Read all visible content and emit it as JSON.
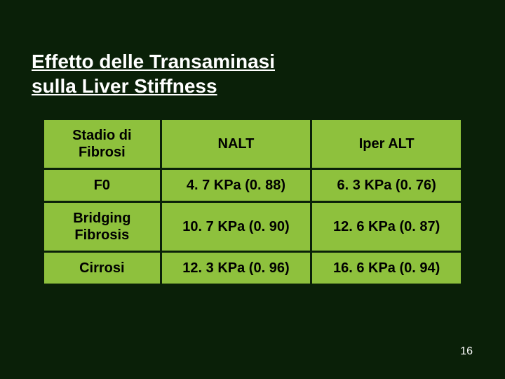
{
  "title_line1": "Effetto delle Transaminasi",
  "title_line2": "sulla Liver Stiffness",
  "table": {
    "columns": [
      "Stadio di Fibrosi",
      "NALT",
      "Iper ALT"
    ],
    "rows": [
      [
        "F0",
        "4. 7 KPa (0. 88)",
        "6. 3 KPa (0. 76)"
      ],
      [
        "Bridging Fibrosis",
        "10. 7 KPa (0. 90)",
        "12. 6 KPa (0. 87)"
      ],
      [
        "Cirrosi",
        "12. 3 KPa (0. 96)",
        "16. 6 KPa (0. 94)"
      ]
    ],
    "cell_bg": "#8ec13d",
    "cell_fg": "#000000",
    "border_spacing": 3,
    "font_size": 20,
    "font_weight": "bold"
  },
  "page_number": "16",
  "background_color": "#0a2008",
  "title_color": "#ffffff",
  "title_fontsize": 28
}
